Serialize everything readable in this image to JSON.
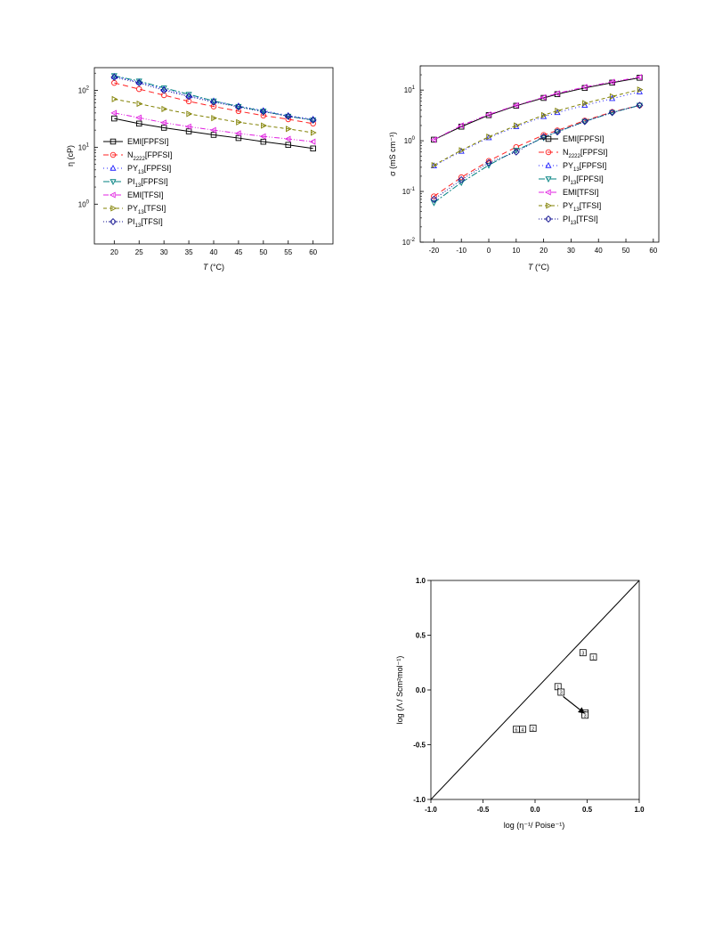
{
  "chart_data": [
    {
      "type": "line",
      "ylog": true,
      "xlabel_main": "T",
      "xlabel_unit": "(°C)",
      "ylabel": "η (cP)",
      "xlim": [
        16,
        64
      ],
      "ylim": [
        0.2,
        250
      ],
      "x_ticks": [
        20,
        25,
        30,
        35,
        40,
        45,
        50,
        55,
        60
      ],
      "y_ticks": [
        {
          "v": 1,
          "label": "10",
          "exp": "0"
        },
        {
          "v": 10,
          "label": "10",
          "exp": "1"
        },
        {
          "v": 100,
          "label": "10",
          "exp": "2"
        }
      ],
      "x": [
        20,
        25,
        30,
        35,
        40,
        45,
        50,
        55,
        60
      ],
      "series": [
        {
          "name": "EMI[FPFSI]",
          "name_parts": [
            [
              "EMI[FPFSI]",
              ""
            ]
          ],
          "color": "#000000",
          "marker": "square",
          "dash": "",
          "values": [
            32,
            26,
            22,
            19,
            16.5,
            14.5,
            12.5,
            11,
            9.5
          ]
        },
        {
          "name": "N2222[FPFSI]",
          "name_parts": [
            [
              "N",
              ""
            ],
            [
              "2222",
              "sub"
            ],
            [
              "[FPFSI]",
              ""
            ]
          ],
          "color": "#ff2020",
          "marker": "circle",
          "dash": "6,4",
          "values": [
            135,
            105,
            82,
            64,
            52,
            43,
            36,
            31,
            26
          ]
        },
        {
          "name": "PY13[FPFSI]",
          "name_parts": [
            [
              "PY",
              ""
            ],
            [
              "13",
              "sub"
            ],
            [
              "[FPFSI]",
              ""
            ]
          ],
          "color": "#2020ff",
          "marker": "triangle-up",
          "dash": "1,3",
          "values": [
            175,
            140,
            105,
            80,
            65,
            53,
            44,
            36,
            31
          ]
        },
        {
          "name": "PI13[FPFSI]",
          "name_parts": [
            [
              "PI",
              ""
            ],
            [
              "13",
              "sub"
            ],
            [
              "[FPFSI]",
              ""
            ]
          ],
          "color": "#008080",
          "marker": "triangle-down",
          "dash": "7,2,2,2",
          "values": [
            180,
            145,
            110,
            85,
            65,
            52,
            43,
            35,
            30
          ]
        },
        {
          "name": "EMI[TFSI]",
          "name_parts": [
            [
              "EMI[TFSI]",
              ""
            ]
          ],
          "color": "#e020e0",
          "marker": "triangle-left",
          "dash": "6,2,1,2,1,2",
          "values": [
            40,
            33,
            27,
            23,
            20,
            17.5,
            15.5,
            14,
            12.5
          ]
        },
        {
          "name": "PY13[TFSI]",
          "name_parts": [
            [
              "PY",
              ""
            ],
            [
              "13",
              "sub"
            ],
            [
              "[TFSI]",
              ""
            ]
          ],
          "color": "#808000",
          "marker": "triangle-right",
          "dash": "4,3",
          "values": [
            70,
            58,
            47,
            38.5,
            32.5,
            27.5,
            24,
            21,
            18
          ]
        },
        {
          "name": "PI13[TFSI]",
          "name_parts": [
            [
              "PI",
              ""
            ],
            [
              "13",
              "sub"
            ],
            [
              "[TFSI]",
              ""
            ]
          ],
          "color": "#101090",
          "marker": "diamond",
          "dash": "1,2",
          "values": [
            170,
            135,
            100,
            78,
            62,
            51,
            42,
            35,
            30
          ]
        }
      ]
    },
    {
      "type": "line",
      "ylog": true,
      "xlabel_main": "T",
      "xlabel_unit": "(°C)",
      "ylabel": "σ (mS cm⁻¹)",
      "xlim": [
        -25,
        62
      ],
      "ylim": [
        0.01,
        30
      ],
      "x_ticks": [
        -20,
        -10,
        0,
        10,
        20,
        30,
        40,
        50,
        60
      ],
      "y_ticks": [
        {
          "v": 0.01,
          "label": "10",
          "exp": "-2"
        },
        {
          "v": 0.1,
          "label": "10",
          "exp": "-1"
        },
        {
          "v": 1,
          "label": "10",
          "exp": "0"
        },
        {
          "v": 10,
          "label": "10",
          "exp": "1"
        }
      ],
      "series": [
        {
          "name": "EMI[FPFSI]",
          "color": "#000000",
          "marker": "square",
          "dash": "",
          "x": [
            -20,
            -10,
            0,
            10,
            20,
            25,
            35,
            45,
            55
          ],
          "values": [
            1.05,
            1.9,
            3.2,
            4.9,
            7,
            8.3,
            11,
            14,
            17.5
          ]
        },
        {
          "name": "N2222[FPFSI]",
          "color": "#ff2020",
          "marker": "circle",
          "dash": "6,4",
          "x": [
            -20,
            -10,
            0,
            10,
            20,
            25,
            35,
            45,
            55
          ],
          "values": [
            0.08,
            0.19,
            0.4,
            0.75,
            1.3,
            1.6,
            2.5,
            3.7,
            5
          ]
        },
        {
          "name": "PY13[FPFSI]",
          "color": "#2020ff",
          "marker": "triangle-up",
          "dash": "1,3",
          "x": [
            -20,
            -10,
            0,
            10,
            20,
            25,
            35,
            45,
            55
          ],
          "values": [
            0.32,
            0.62,
            1.15,
            1.9,
            3.0,
            3.6,
            5.0,
            6.8,
            9.2
          ]
        },
        {
          "name": "PI13[FPFSI]",
          "color": "#008080",
          "marker": "triangle-down",
          "dash": "7,2,2,2",
          "x": [
            -20,
            -10,
            0,
            10,
            20,
            25,
            35,
            45,
            55
          ],
          "values": [
            0.06,
            0.15,
            0.33,
            0.65,
            1.15,
            1.5,
            2.4,
            3.6,
            5
          ]
        },
        {
          "name": "EMI[TFSI]",
          "color": "#e020e0",
          "marker": "triangle-left",
          "dash": "6,2,1,2,1,2",
          "x": [
            -20,
            -10,
            0,
            10,
            20,
            25,
            35,
            45,
            55
          ],
          "values": [
            1.05,
            2.0,
            3.3,
            5.0,
            7.2,
            8.6,
            11.5,
            14.5,
            18
          ]
        },
        {
          "name": "PY13[TFSI]",
          "color": "#808000",
          "marker": "triangle-right",
          "dash": "4,3",
          "x": [
            -20,
            -10,
            0,
            10,
            20,
            25,
            35,
            45,
            55
          ],
          "values": [
            0.33,
            0.65,
            1.2,
            2.0,
            3.2,
            3.9,
            5.5,
            7.5,
            10.2
          ]
        },
        {
          "name": "PI13[TFSI]",
          "color": "#101090",
          "marker": "diamond",
          "dash": "1,2",
          "x": [
            -20,
            -10,
            0,
            10,
            20,
            25,
            35,
            45,
            55
          ],
          "values": [
            0.07,
            0.17,
            0.37,
            0.6,
            1.2,
            1.5,
            2.4,
            3.6,
            5
          ]
        }
      ]
    },
    {
      "type": "scatter",
      "xlabel": "log (η⁻¹/ Poise⁻¹)",
      "ylabel": "log (Λ / Scm²mol⁻¹)",
      "xlim": [
        -1.0,
        1.0
      ],
      "ylim": [
        -1.0,
        1.0
      ],
      "x_ticks": [
        {
          "v": -1.0,
          "label": "-1.0"
        },
        {
          "v": -0.5,
          "label": "-0.5"
        },
        {
          "v": 0.0,
          "label": "0.0"
        },
        {
          "v": 0.5,
          "label": "0.5"
        },
        {
          "v": 1.0,
          "label": "1.0"
        }
      ],
      "y_ticks": [
        {
          "v": -1.0,
          "label": "-1.0"
        },
        {
          "v": -0.5,
          "label": "-0.5"
        },
        {
          "v": 0.0,
          "label": "0.0"
        },
        {
          "v": 0.5,
          "label": "0.5"
        },
        {
          "v": 1.0,
          "label": "1.0"
        }
      ],
      "reference_line": [
        [
          -1.0,
          -1.0
        ],
        [
          1.0,
          1.0
        ]
      ],
      "points": [
        {
          "label": "1",
          "x": 0.56,
          "y": 0.3
        },
        {
          "label": "3",
          "x": 0.46,
          "y": 0.34
        },
        {
          "label": "1",
          "x": 0.22,
          "y": 0.03
        },
        {
          "label": "3",
          "x": 0.25,
          "y": -0.02
        },
        {
          "label": "5",
          "x": 0.48,
          "y": -0.21
        },
        {
          "label": "3",
          "x": 0.48,
          "y": -0.23
        },
        {
          "label": "2",
          "x": -0.02,
          "y": -0.35
        },
        {
          "label": "4",
          "x": -0.12,
          "y": -0.36
        },
        {
          "label": "6",
          "x": -0.18,
          "y": -0.36
        }
      ],
      "arrow": {
        "from": [
          0.27,
          -0.06
        ],
        "to": [
          0.47,
          -0.21
        ]
      }
    }
  ]
}
